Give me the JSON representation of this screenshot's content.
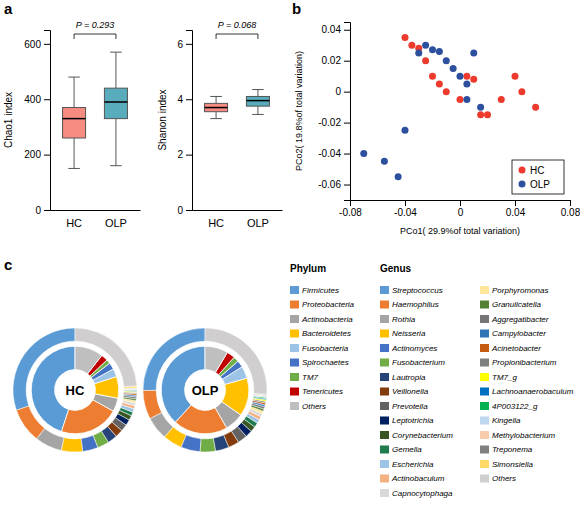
{
  "chart_data": [
    {
      "type": "box",
      "title": "a",
      "categories": [
        "HC",
        "OLP"
      ],
      "colors": [
        "#F4776B",
        "#3B9EAF"
      ],
      "whislo": [
        150,
        160
      ],
      "q1": [
        260,
        330
      ],
      "median": [
        330,
        390
      ],
      "q3": [
        370,
        440
      ],
      "whishi": [
        480,
        570
      ],
      "ylabel": "Chao1 index",
      "ylim": [
        0,
        650
      ],
      "yticks": [
        0,
        200,
        400,
        600
      ],
      "annotation": "P = 0.293"
    },
    {
      "type": "box",
      "categories": [
        "HC",
        "OLP"
      ],
      "colors": [
        "#F4776B",
        "#3B9EAF"
      ],
      "whislo": [
        3.3,
        3.45
      ],
      "q1": [
        3.55,
        3.75
      ],
      "median": [
        3.7,
        3.95
      ],
      "q3": [
        3.85,
        4.1
      ],
      "whishi": [
        4.1,
        4.35
      ],
      "ylabel": "Shanon index",
      "ylim": [
        0,
        6.5
      ],
      "yticks": [
        0,
        2,
        4,
        6
      ],
      "annotation": "P = 0.068"
    },
    {
      "type": "scatter",
      "title": "b",
      "xlabel": "PCo1( 29.9%of total variation)",
      "ylabel": "PCo2( 19.8%of total variation)",
      "xlim": [
        -0.08,
        0.08
      ],
      "xticks": [
        -0.08,
        -0.04,
        0,
        0.04,
        0.08
      ],
      "ylim": [
        -0.07,
        0.045
      ],
      "yticks": [
        -0.06,
        -0.04,
        -0.02,
        0,
        0.02,
        0.04
      ],
      "legend": "lower right",
      "series": [
        {
          "name": "HC",
          "color": "#EE3A2D",
          "x": [
            -0.04,
            -0.035,
            -0.03,
            -0.025,
            -0.02,
            -0.015,
            -0.01,
            0.0,
            0.005,
            0.01,
            0.015,
            0.02,
            0.03,
            0.04,
            0.045,
            0.055
          ],
          "values": [
            0.035,
            0.03,
            0.028,
            0.02,
            0.01,
            0.005,
            0.0,
            -0.005,
            0.01,
            0.008,
            -0.015,
            -0.015,
            -0.005,
            0.01,
            0.0,
            -0.01
          ]
        },
        {
          "name": "OLP",
          "color": "#2C4F9E",
          "x": [
            -0.07,
            -0.055,
            -0.045,
            -0.04,
            -0.03,
            -0.025,
            -0.02,
            -0.015,
            -0.01,
            -0.005,
            0.0,
            0.005,
            0.005,
            0.01,
            0.015
          ],
          "values": [
            -0.04,
            -0.045,
            -0.055,
            -0.025,
            0.025,
            0.03,
            0.027,
            0.026,
            0.02,
            0.015,
            0.01,
            0.005,
            -0.005,
            0.025,
            -0.01
          ]
        }
      ]
    },
    {
      "type": "donut",
      "title": "c",
      "categories": [
        "HC",
        "OLP"
      ],
      "series": [
        {
          "name": "Phylum",
          "labels": [
            "Firmicutes",
            "Proteobacteria",
            "Actinobacteria",
            "Bacteroidetes",
            "Fusobacteria",
            "Spirochaetes",
            "TM7",
            "Tenericutes",
            "Others"
          ],
          "colors": [
            "#5B9BD5",
            "#ED7D31",
            "#A5A5A5",
            "#FFC000",
            "#9DC3E6",
            "#4472C4",
            "#70AD47",
            "#C00000",
            "#BFBFBF"
          ],
          "values": [
            [
              0.45,
              0.22,
              0.05,
              0.08,
              0.03,
              0.025,
              0.015,
              0.025,
              0.105
            ],
            [
              0.38,
              0.2,
              0.07,
              0.14,
              0.045,
              0.025,
              0.02,
              0.03,
              0.085
            ]
          ]
        },
        {
          "name": "Genus",
          "labels": [
            "Streptococcus",
            "Haemophilus",
            "Rothia",
            "Neisseria",
            "Actinomyces",
            "Fusobacterium",
            "Lautropia",
            "Veillonella",
            "Prevotella",
            "Leptotrichia",
            "Corynebacterium",
            "Gemella",
            "Escherichia",
            "Actinobaculum",
            "Capnocytophaga",
            "Porphyromonas",
            "Granulicatella",
            "Aggregatibacter",
            "Campylobacter",
            "Acinetobacter",
            "Propionibacterium",
            "TM7_g",
            "Lachnoanaerobaculum",
            "4P003122_g",
            "Kingella",
            "Methylobacterium",
            "Treponema",
            "Simonsiella",
            "Others"
          ],
          "colors": [
            "#5B9BD5",
            "#ED7D31",
            "#A5A5A5",
            "#FFC000",
            "#4472C4",
            "#70AD47",
            "#264478",
            "#843C0C",
            "#636363",
            "#002060",
            "#375623",
            "#1F7C4D",
            "#9DC3E6",
            "#F4B183",
            "#D9D9D9",
            "#FFE699",
            "#548235",
            "#767676",
            "#2E75B6",
            "#C55A11",
            "#7F7F7F",
            "#FFFF00",
            "#0070C0",
            "#00B050",
            "#BDD7EE",
            "#F8CBAD",
            "#808080",
            "#FFD966",
            "#D0CECE"
          ],
          "values": [
            [
              0.3,
              0.09,
              0.07,
              0.055,
              0.04,
              0.03,
              0.025,
              0.02,
              0.018,
              0.015,
              0.012,
              0.01,
              0.009,
              0.008,
              0.007,
              0.006,
              0.005,
              0.005,
              0.004,
              0.004,
              0.003,
              0.003,
              0.002,
              0.002,
              0.002,
              0.002,
              0.001,
              0.005,
              0.237
            ],
            [
              0.25,
              0.075,
              0.06,
              0.05,
              0.05,
              0.04,
              0.035,
              0.028,
              0.025,
              0.018,
              0.014,
              0.012,
              0.01,
              0.009,
              0.008,
              0.007,
              0.006,
              0.006,
              0.005,
              0.005,
              0.004,
              0.004,
              0.003,
              0.003,
              0.003,
              0.002,
              0.002,
              0.001,
              0.26
            ]
          ]
        }
      ]
    }
  ]
}
